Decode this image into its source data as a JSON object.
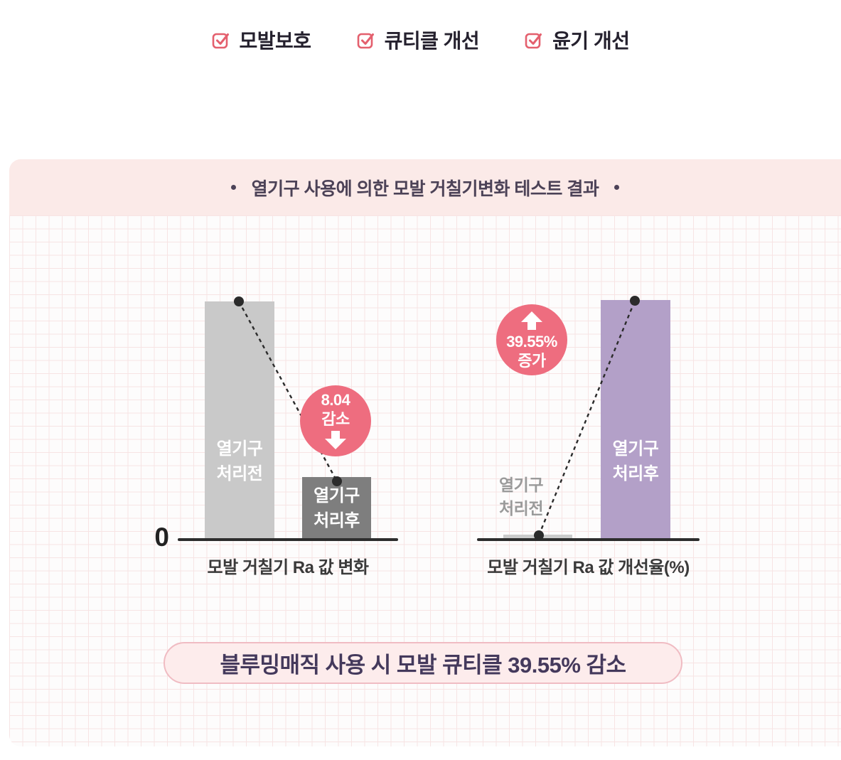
{
  "checklist": {
    "items": [
      {
        "label": "모발보호"
      },
      {
        "label": "큐티클 개선"
      },
      {
        "label": "윤기 개선"
      }
    ]
  },
  "panel": {
    "header_title": "열기구 사용에 의한 모발 거칠기변화 테스트 결과"
  },
  "charts": {
    "left": {
      "zero_label": "0",
      "axis_label": "모발 거칠기 Ra 값 변화",
      "bar_before_label": "열기구\n처리전",
      "bar_after_label": "열기구\n처리후",
      "badge": {
        "value": "8.04",
        "word": "감소",
        "direction": "down"
      }
    },
    "right": {
      "axis_label": "모발 거칠기 Ra 값 개선율(%)",
      "bar_before_label": "열기구\n처리전",
      "bar_after_label": "열기구\n처리후",
      "badge": {
        "value": "39.55%",
        "word": "증가",
        "direction": "up"
      }
    }
  },
  "banner": {
    "text": "블루밍매직 사용 시 모발 큐티클 39.55% 감소"
  },
  "colors": {
    "accent_pink": "#ee6d7f",
    "checkbox_pink": "#e4606e",
    "header_bg": "#fbeae8",
    "grid_line": "#f7e4e4",
    "bar_light_gray": "#c9c9c9",
    "bar_dark_gray": "#7e7e7e",
    "bar_purple": "#b3a0c8",
    "banner_bg": "#fdecec",
    "banner_border": "#f0bcc3",
    "title_text": "#4c4257",
    "banner_text": "#44395c"
  },
  "chart_data": [
    {
      "type": "bar",
      "title": "모발 거칠기 Ra 값 변화",
      "categories": [
        "열기구 처리전",
        "열기구 처리후"
      ],
      "values": [
        10.8,
        2.8
      ],
      "annotation": "8.04 감소",
      "baseline_tick": "0",
      "bar_colors": [
        "#c9c9c9",
        "#7e7e7e"
      ],
      "grid": true,
      "notes": "values estimated from bar heights; labeled difference is 8.04"
    },
    {
      "type": "bar",
      "title": "모발 거칠기 Ra 값 개선율(%)",
      "categories": [
        "열기구 처리전",
        "열기구 처리후"
      ],
      "values": [
        0.7,
        39.55
      ],
      "annotation": "39.55% 증가",
      "bar_colors": [
        "#cbcbcb",
        "#b3a0c8"
      ],
      "grid": true,
      "notes": "after-treatment improvement rate labeled 39.55%"
    }
  ]
}
